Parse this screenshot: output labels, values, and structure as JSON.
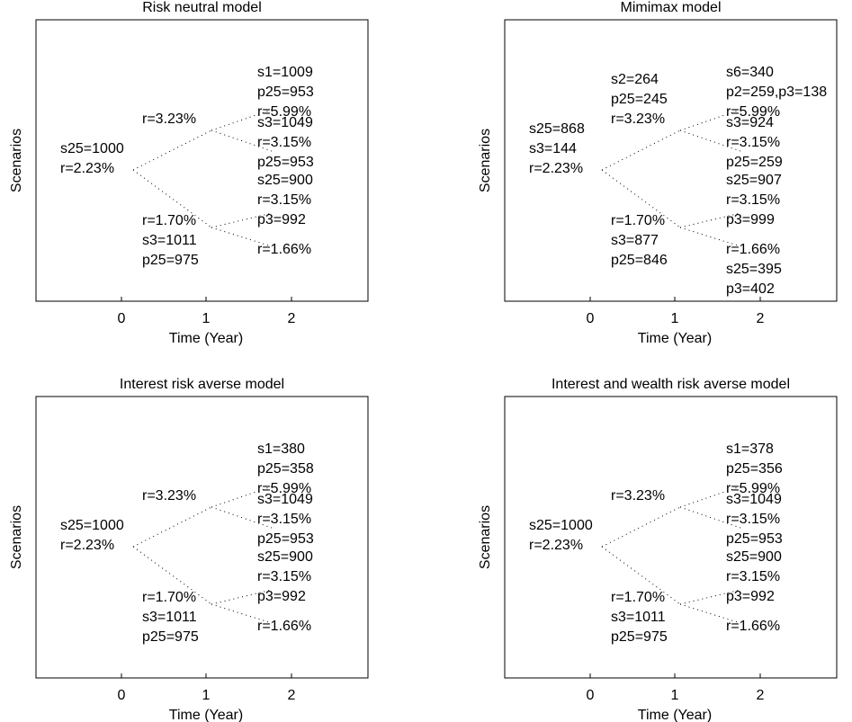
{
  "panels": [
    {
      "title": "Risk neutral model",
      "xlabel": "Time (Year)",
      "ylabel": "Scenarios",
      "xticks": [
        "0",
        "1",
        "2"
      ],
      "edges": [
        [
          "root",
          "up"
        ],
        [
          "root",
          "down"
        ],
        [
          "up",
          "uu"
        ],
        [
          "up",
          "ud"
        ],
        [
          "down",
          "du"
        ],
        [
          "down",
          "dd"
        ]
      ],
      "nodes": {
        "root": [
          "s25=1000",
          "r=2.23%"
        ],
        "up": [
          "r=3.23%"
        ],
        "down": [
          "r=1.70%",
          "s3=1011",
          "p25=975"
        ],
        "uu": [
          "s1=1009",
          "p25=953",
          "r=5.99%"
        ],
        "ud": [
          "s3=1049",
          "r=3.15%",
          "p25=953"
        ],
        "du": [
          "s25=900",
          "r=3.15%",
          "p3=992"
        ],
        "dd": [
          "r=1.66%"
        ]
      }
    },
    {
      "title": "Mimimax model",
      "xlabel": "Time (Year)",
      "ylabel": "Scenarios",
      "xticks": [
        "0",
        "1",
        "2"
      ],
      "edges": [
        [
          "root",
          "up"
        ],
        [
          "root",
          "down"
        ],
        [
          "up",
          "uu"
        ],
        [
          "up",
          "ud"
        ],
        [
          "down",
          "du"
        ],
        [
          "down",
          "dd"
        ]
      ],
      "nodes": {
        "root": [
          "s25=868",
          "s3=144",
          "r=2.23%"
        ],
        "up": [
          "s2=264",
          "p25=245",
          "r=3.23%"
        ],
        "down": [
          "r=1.70%",
          "s3=877",
          "p25=846"
        ],
        "uu": [
          "s6=340",
          "p2=259,p3=138",
          "r=5.99%"
        ],
        "ud": [
          "s3=924",
          "r=3.15%",
          "p25=259"
        ],
        "du": [
          "s25=907",
          "r=3.15%",
          "p3=999"
        ],
        "dd": [
          "r=1.66%",
          "s25=395",
          "p3=402"
        ]
      }
    },
    {
      "title": "Interest risk averse model",
      "xlabel": "Time (Year)",
      "ylabel": "Scenarios",
      "xticks": [
        "0",
        "1",
        "2"
      ],
      "edges": [
        [
          "root",
          "up"
        ],
        [
          "root",
          "down"
        ],
        [
          "up",
          "uu"
        ],
        [
          "up",
          "ud"
        ],
        [
          "down",
          "du"
        ],
        [
          "down",
          "dd"
        ]
      ],
      "nodes": {
        "root": [
          "s25=1000",
          "r=2.23%"
        ],
        "up": [
          "r=3.23%"
        ],
        "down": [
          "r=1.70%",
          "s3=1011",
          "p25=975"
        ],
        "uu": [
          "s1=380",
          "p25=358",
          "r=5.99%"
        ],
        "ud": [
          "s3=1049",
          "r=3.15%",
          "p25=953"
        ],
        "du": [
          "s25=900",
          "r=3.15%",
          "p3=992"
        ],
        "dd": [
          "r=1.66%"
        ]
      }
    },
    {
      "title": "Interest and wealth risk averse model",
      "xlabel": "Time (Year)",
      "ylabel": "Scenarios",
      "xticks": [
        "0",
        "1",
        "2"
      ],
      "edges": [
        [
          "root",
          "up"
        ],
        [
          "root",
          "down"
        ],
        [
          "up",
          "uu"
        ],
        [
          "up",
          "ud"
        ],
        [
          "down",
          "du"
        ],
        [
          "down",
          "dd"
        ]
      ],
      "nodes": {
        "root": [
          "s25=1000",
          "r=2.23%"
        ],
        "up": [
          "r=3.23%"
        ],
        "down": [
          "r=1.70%",
          "s3=1011",
          "p25=975"
        ],
        "uu": [
          "s1=378",
          "p25=356",
          "r=5.99%"
        ],
        "ud": [
          "s3=1049",
          "r=3.15%",
          "p25=953"
        ],
        "du": [
          "s25=900",
          "r=3.15%",
          "p3=992"
        ],
        "dd": [
          "r=1.66%"
        ]
      }
    }
  ]
}
